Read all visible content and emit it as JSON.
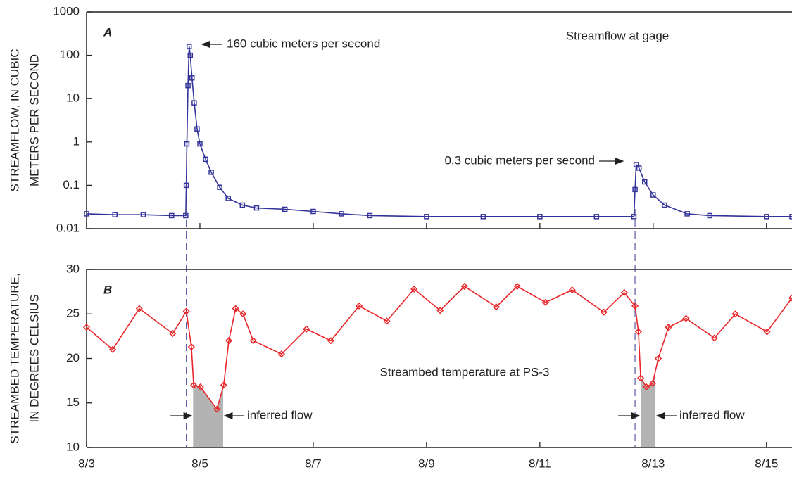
{
  "chart_data": [
    {
      "type": "line",
      "label": "A",
      "title": "Streamflow at gage",
      "ylabel": [
        "STREAMFLOW, IN CUBIC",
        "METERS PER SECOND"
      ],
      "annotations": [
        "160 cubic meters per second",
        "0.3 cubic meters per second"
      ],
      "log": true,
      "ylim": [
        0.01,
        1000
      ],
      "yticks": [
        0.01,
        0.1,
        1,
        10,
        100,
        1000
      ],
      "xlim": [
        3,
        15.45
      ],
      "event_lines": [
        4.76,
        12.68
      ],
      "series": [
        {
          "color": "#333399",
          "marker": "square",
          "x": [
            3.0,
            3.5,
            4.0,
            4.5,
            4.75,
            4.76,
            4.77,
            4.79,
            4.81,
            4.83,
            4.86,
            4.9,
            4.95,
            5.0,
            5.1,
            5.2,
            5.35,
            5.5,
            5.75,
            6.0,
            6.5,
            7.0,
            7.5,
            8.0,
            9.0,
            10.0,
            11.0,
            12.0,
            12.66,
            12.68,
            12.7,
            12.75,
            12.85,
            13.0,
            13.2,
            13.6,
            14.0,
            15.0,
            15.45
          ],
          "values": [
            0.022,
            0.021,
            0.021,
            0.02,
            0.02,
            0.1,
            0.9,
            20,
            160,
            100,
            30,
            8,
            2,
            0.9,
            0.4,
            0.2,
            0.09,
            0.05,
            0.035,
            0.03,
            0.028,
            0.025,
            0.022,
            0.02,
            0.019,
            0.019,
            0.019,
            0.019,
            0.019,
            0.08,
            0.3,
            0.25,
            0.12,
            0.06,
            0.035,
            0.022,
            0.02,
            0.019,
            0.019
          ]
        }
      ]
    },
    {
      "type": "line",
      "label": "B",
      "title": "Streambed temperature at PS-3",
      "ylabel": [
        "STREAMBED TEMPERATURE,",
        "IN DEGREES CELSIUS"
      ],
      "annotations": [
        "inferred flow",
        "inferred flow"
      ],
      "inferred_flow": [
        [
          4.88,
          5.41
        ],
        [
          12.78,
          13.04
        ]
      ],
      "log": false,
      "ylim": [
        10,
        30
      ],
      "yticks": [
        10,
        15,
        20,
        25,
        30
      ],
      "xlim": [
        3,
        15.45
      ],
      "xticks": [
        {
          "value": 3,
          "label": "8/3"
        },
        {
          "value": 5,
          "label": "8/5"
        },
        {
          "value": 7,
          "label": "8/7"
        },
        {
          "value": 9,
          "label": "8/9"
        },
        {
          "value": 11,
          "label": "8/11"
        },
        {
          "value": 13,
          "label": "8/13"
        },
        {
          "value": 15,
          "label": "8/15"
        }
      ],
      "series": [
        {
          "color": "#e8262a",
          "marker": "diamond",
          "x": [
            3.0,
            3.46,
            3.93,
            4.52,
            4.76,
            4.85,
            4.89,
            5.01,
            5.3,
            5.42,
            5.51,
            5.63,
            5.76,
            5.94,
            6.44,
            6.88,
            7.31,
            7.81,
            8.3,
            8.78,
            9.24,
            9.67,
            10.23,
            10.6,
            11.1,
            11.57,
            12.13,
            12.49,
            12.68,
            12.74,
            12.78,
            12.88,
            12.99,
            13.09,
            13.27,
            13.58,
            14.08,
            14.45,
            15.01,
            15.45
          ],
          "values": [
            23.5,
            21,
            25.6,
            22.8,
            25.3,
            21.3,
            17,
            16.8,
            14.3,
            17,
            22,
            25.6,
            25,
            22,
            20.5,
            23.3,
            22,
            25.9,
            24.2,
            27.8,
            25.4,
            28.1,
            25.8,
            28.1,
            26.3,
            27.7,
            25.2,
            27.4,
            25.9,
            23,
            17.8,
            16.8,
            17.2,
            20,
            23.5,
            24.5,
            22.3,
            25,
            23,
            26.8
          ]
        }
      ]
    }
  ]
}
